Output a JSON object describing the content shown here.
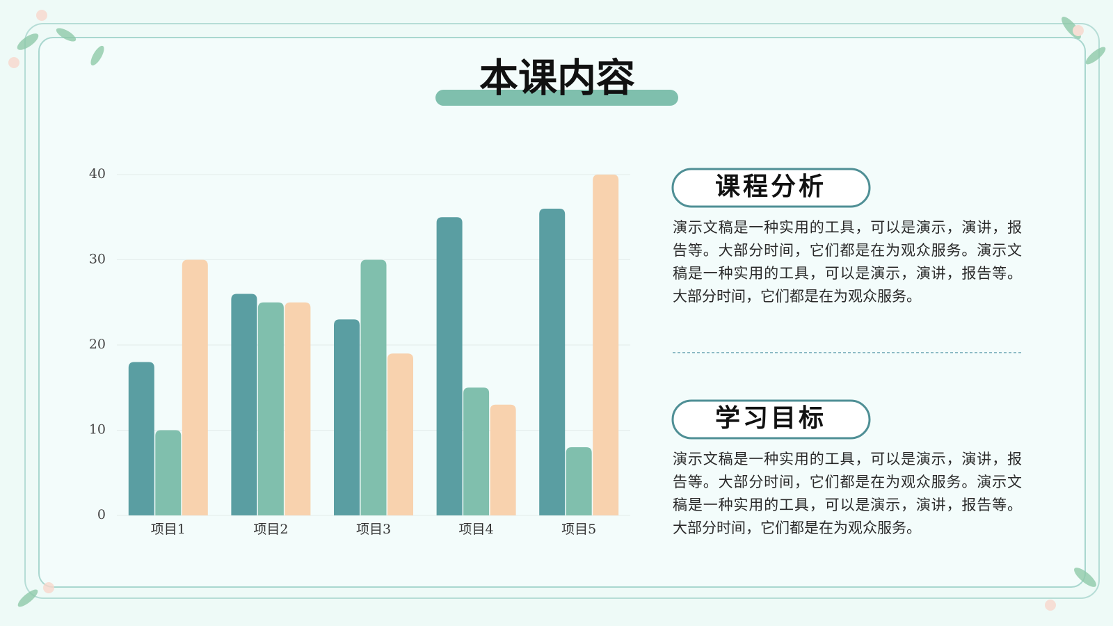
{
  "header": {
    "title": "本课内容"
  },
  "chart_data": {
    "type": "bar",
    "categories": [
      "项目1",
      "项目2",
      "项目3",
      "项目4",
      "项目5"
    ],
    "series": [
      {
        "color": "#5a9ea2",
        "values": [
          18,
          26,
          23,
          35,
          36
        ]
      },
      {
        "color": "#80bfad",
        "values": [
          10,
          25,
          30,
          15,
          8
        ]
      },
      {
        "color": "#f8d2ae",
        "values": [
          30,
          25,
          19,
          13,
          40
        ]
      }
    ],
    "ylim": [
      0,
      40
    ],
    "yticks": [
      0,
      10,
      20,
      30,
      40
    ],
    "grid": true
  },
  "sections": [
    {
      "heading": "课程分析",
      "text": "演示文稿是一种实用的工具，可以是演示，演讲，报告等。大部分时间，它们都是在为观众服务。演示文稿是一种实用的工具，可以是演示，演讲，报告等。大部分时间，它们都是在为观众服务。"
    },
    {
      "heading": "学习目标",
      "text": "演示文稿是一种实用的工具，可以是演示，演讲，报告等。大部分时间，它们都是在为观众服务。演示文稿是一种实用的工具，可以是演示，演讲，报告等。大部分时间，它们都是在为观众服务。"
    }
  ]
}
